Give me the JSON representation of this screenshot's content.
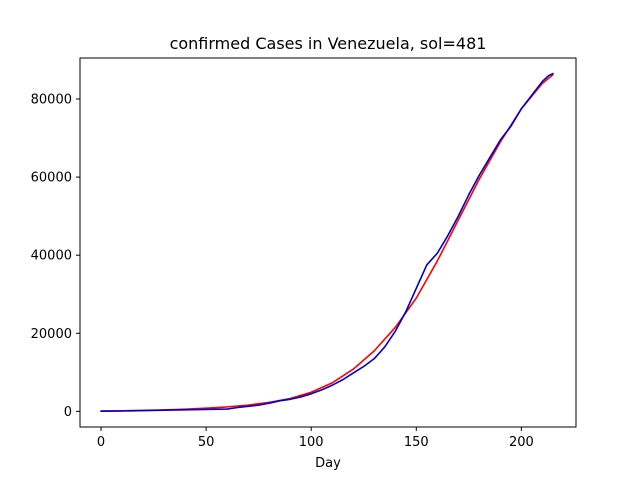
{
  "chart_data": {
    "type": "line",
    "title": "confirmed Cases in Venezuela, sol=481",
    "xlabel": "Day",
    "ylabel": "",
    "xlim": [
      -10,
      226
    ],
    "ylim": [
      -4000,
      90500
    ],
    "xticks": [
      0,
      50,
      100,
      150,
      200
    ],
    "yticks": [
      0,
      20000,
      40000,
      60000,
      80000
    ],
    "grid": false,
    "legend": "none",
    "series": [
      {
        "color": "#ff0000",
        "x": [
          0,
          10,
          20,
          30,
          40,
          50,
          60,
          70,
          80,
          90,
          100,
          110,
          120,
          130,
          140,
          150,
          160,
          170,
          180,
          190,
          200,
          210,
          215
        ],
        "values": [
          80,
          150,
          250,
          380,
          560,
          820,
          1150,
          1600,
          2300,
          3300,
          4900,
          7300,
          10800,
          15500,
          21500,
          29000,
          38500,
          49000,
          59500,
          69000,
          77500,
          84000,
          86200
        ]
      },
      {
        "color": "#0000cc",
        "x": [
          0,
          10,
          20,
          30,
          40,
          50,
          60,
          65,
          70,
          75,
          80,
          85,
          90,
          95,
          100,
          105,
          110,
          115,
          120,
          125,
          130,
          135,
          140,
          145,
          150,
          155,
          160,
          165,
          170,
          175,
          180,
          185,
          190,
          195,
          200,
          205,
          210,
          213,
          215
        ],
        "values": [
          50,
          100,
          200,
          300,
          400,
          500,
          600,
          1000,
          1300,
          1600,
          2100,
          2700,
          3100,
          3700,
          4500,
          5500,
          6700,
          8100,
          9800,
          11500,
          13500,
          16500,
          20500,
          25500,
          31500,
          37500,
          40500,
          45000,
          50000,
          55500,
          60500,
          65000,
          69500,
          73000,
          77500,
          81000,
          84500,
          86000,
          86500
        ]
      }
    ]
  }
}
